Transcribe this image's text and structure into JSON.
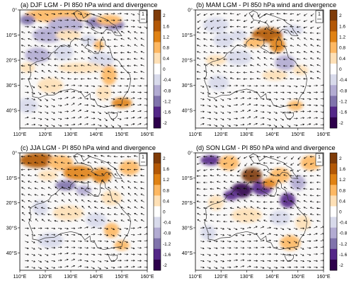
{
  "figure": {
    "panels": [
      {
        "title": "(a) DJF LGM - PI 850 hPa wind and divergence",
        "regions": [
          {
            "lon": 125,
            "lat": -2,
            "w": 13,
            "h": 3,
            "v": 0.9
          },
          {
            "lon": 113,
            "lat": -4,
            "w": 3,
            "h": 2,
            "v": -1.0
          },
          {
            "lon": 128,
            "lat": -6,
            "w": 7,
            "h": 3,
            "v": -0.7
          },
          {
            "lon": 140,
            "lat": -5,
            "w": 4,
            "h": 2,
            "v": -1.3
          },
          {
            "lon": 147,
            "lat": -6,
            "w": 4,
            "h": 2,
            "v": -1.1
          },
          {
            "lon": 145,
            "lat": -4,
            "w": 5,
            "h": 2,
            "v": 0.6
          },
          {
            "lon": 121,
            "lat": -10,
            "w": 6,
            "h": 3,
            "v": -0.7
          },
          {
            "lon": 129,
            "lat": -10,
            "w": 5,
            "h": 2,
            "v": 0.5
          },
          {
            "lon": 137,
            "lat": -12,
            "w": 3,
            "h": 2,
            "v": -0.5
          },
          {
            "lon": 141,
            "lat": -14,
            "w": 2,
            "h": 2,
            "v": 0.6
          },
          {
            "lon": 117,
            "lat": -18,
            "w": 5,
            "h": 3,
            "v": -0.6
          },
          {
            "lon": 127,
            "lat": -17,
            "w": 4,
            "h": 3,
            "v": -0.4
          },
          {
            "lon": 142,
            "lat": -20,
            "w": 5,
            "h": 3,
            "v": -0.5
          },
          {
            "lon": 134,
            "lat": -23,
            "w": 9,
            "h": 2,
            "v": 0.5
          },
          {
            "lon": 113,
            "lat": -23,
            "w": 3,
            "h": 2,
            "v": 0.5
          },
          {
            "lon": 145,
            "lat": -26,
            "w": 3,
            "h": 4,
            "v": 0.6
          },
          {
            "lon": 122,
            "lat": -30,
            "w": 5,
            "h": 3,
            "v": 0.4
          },
          {
            "lon": 150,
            "lat": -37,
            "w": 4,
            "h": 2,
            "v": 1.3
          },
          {
            "lon": 143,
            "lat": -33,
            "w": 3,
            "h": 3,
            "v": 0.4
          },
          {
            "lon": 113,
            "lat": -38,
            "w": 4,
            "h": 3,
            "v": -0.4
          }
        ]
      },
      {
        "title": "(b) MAM LGM - PI 850 hPa wind and divergence",
        "regions": [
          {
            "lon": 138,
            "lat": -10,
            "w": 6,
            "h": 3,
            "v": 1.5
          },
          {
            "lon": 142,
            "lat": -14,
            "w": 3,
            "h": 3,
            "v": 1.1
          },
          {
            "lon": 133,
            "lat": -13,
            "w": 4,
            "h": 2,
            "v": 0.8
          },
          {
            "lon": 127,
            "lat": -10,
            "w": 3,
            "h": 2,
            "v": -0.5
          },
          {
            "lon": 121,
            "lat": -12,
            "w": 4,
            "h": 3,
            "v": -0.4
          },
          {
            "lon": 148,
            "lat": -8,
            "w": 4,
            "h": 2,
            "v": -0.5
          },
          {
            "lon": 118,
            "lat": -20,
            "w": 4,
            "h": 2,
            "v": 0.5
          },
          {
            "lon": 127,
            "lat": -19,
            "w": 5,
            "h": 3,
            "v": -0.5
          },
          {
            "lon": 145,
            "lat": -21,
            "w": 4,
            "h": 3,
            "v": -0.6
          },
          {
            "lon": 141,
            "lat": -26,
            "w": 5,
            "h": 2,
            "v": 0.5
          },
          {
            "lon": 151,
            "lat": -24,
            "w": 3,
            "h": 2,
            "v": 0.4
          },
          {
            "lon": 119,
            "lat": -29,
            "w": 4,
            "h": 3,
            "v": -0.4
          },
          {
            "lon": 149,
            "lat": -38,
            "w": 3,
            "h": 2,
            "v": 0.7
          },
          {
            "lon": 118,
            "lat": -6,
            "w": 5,
            "h": 3,
            "v": -0.3
          }
        ]
      },
      {
        "title": "(c) JJA LGM - PI 850 hPa wind and divergence",
        "regions": [
          {
            "lon": 117,
            "lat": -3,
            "w": 7,
            "h": 3,
            "v": 1.6
          },
          {
            "lon": 126,
            "lat": -4,
            "w": 5,
            "h": 3,
            "v": 1.0
          },
          {
            "lon": 133,
            "lat": -8,
            "w": 6,
            "h": 3,
            "v": 1.1
          },
          {
            "lon": 142,
            "lat": -9,
            "w": 4,
            "h": 3,
            "v": 1.3
          },
          {
            "lon": 153,
            "lat": -6,
            "w": 4,
            "h": 3,
            "v": 0.9
          },
          {
            "lon": 128,
            "lat": -13,
            "w": 4,
            "h": 2,
            "v": -1.3
          },
          {
            "lon": 135,
            "lat": -15,
            "w": 3,
            "h": 2,
            "v": -0.6
          },
          {
            "lon": 121,
            "lat": -9,
            "w": 4,
            "h": 2,
            "v": 0.5
          },
          {
            "lon": 146,
            "lat": -18,
            "w": 4,
            "h": 3,
            "v": 0.5
          },
          {
            "lon": 118,
            "lat": -22,
            "w": 3,
            "h": 3,
            "v": -0.5
          },
          {
            "lon": 129,
            "lat": -24,
            "w": 6,
            "h": 3,
            "v": 0.4
          },
          {
            "lon": 140,
            "lat": -27,
            "w": 4,
            "h": 3,
            "v": -0.4
          },
          {
            "lon": 146,
            "lat": -31,
            "w": 3,
            "h": 3,
            "v": 0.6
          },
          {
            "lon": 150,
            "lat": -37,
            "w": 3,
            "h": 2,
            "v": 0.9
          },
          {
            "lon": 122,
            "lat": -35,
            "w": 5,
            "h": 3,
            "v": -0.4
          }
        ]
      },
      {
        "title": "(d) SON LGM - PI 850 hPa wind and divergence",
        "regions": [
          {
            "lon": 128,
            "lat": -15,
            "w": 4,
            "h": 3,
            "v": -2.0
          },
          {
            "lon": 124,
            "lat": -17,
            "w": 3,
            "h": 2,
            "v": -1.4
          },
          {
            "lon": 136,
            "lat": -14,
            "w": 4,
            "h": 3,
            "v": -1.6
          },
          {
            "lon": 146,
            "lat": -19,
            "w": 3,
            "h": 3,
            "v": -1.4
          },
          {
            "lon": 132,
            "lat": -9,
            "w": 4,
            "h": 3,
            "v": 1.8
          },
          {
            "lon": 139,
            "lat": -12,
            "w": 3,
            "h": 2,
            "v": 1.4
          },
          {
            "lon": 143,
            "lat": -9,
            "w": 4,
            "h": 3,
            "v": 1.0
          },
          {
            "lon": 116,
            "lat": -3,
            "w": 4,
            "h": 2,
            "v": -1.5
          },
          {
            "lon": 123,
            "lat": -4,
            "w": 4,
            "h": 3,
            "v": 0.9
          },
          {
            "lon": 155,
            "lat": -4,
            "w": 4,
            "h": 3,
            "v": 0.9
          },
          {
            "lon": 150,
            "lat": -12,
            "w": 3,
            "h": 3,
            "v": -0.6
          },
          {
            "lon": 118,
            "lat": -20,
            "w": 3,
            "h": 3,
            "v": 0.5
          },
          {
            "lon": 130,
            "lat": -25,
            "w": 6,
            "h": 3,
            "v": 0.4
          },
          {
            "lon": 143,
            "lat": -26,
            "w": 4,
            "h": 3,
            "v": -0.5
          },
          {
            "lon": 152,
            "lat": -28,
            "w": 3,
            "h": 3,
            "v": 0.5
          },
          {
            "lon": 147,
            "lat": -36,
            "w": 4,
            "h": 3,
            "v": 0.6
          },
          {
            "lon": 115,
            "lat": -32,
            "w": 3,
            "h": 3,
            "v": -0.4
          }
        ]
      }
    ],
    "lon_ticks": [
      "110°E",
      "120°E",
      "130°E",
      "140°E",
      "150°E",
      "160°E"
    ],
    "lat_ticks": [
      "0°",
      "10°S",
      "20°S",
      "30°S",
      "40°S"
    ],
    "lon_range": [
      110,
      160
    ],
    "lat_range": [
      0,
      -47
    ],
    "colorbar": {
      "labels": [
        "2",
        "1.6",
        "1.2",
        "0.8",
        "0.4",
        "0",
        "-0.4",
        "-0.8",
        "-1.2",
        "-1.6",
        "-2"
      ],
      "colors": [
        "#7f3b08",
        "#b35806",
        "#e08214",
        "#fdb863",
        "#fee0b6",
        "#ffffff",
        "#d8daeb",
        "#b2abd2",
        "#8073ac",
        "#542788",
        "#2d004b"
      ]
    },
    "reference_vector_label": "1",
    "land_color": "#f7f7f7",
    "coast_color": "#333333"
  }
}
